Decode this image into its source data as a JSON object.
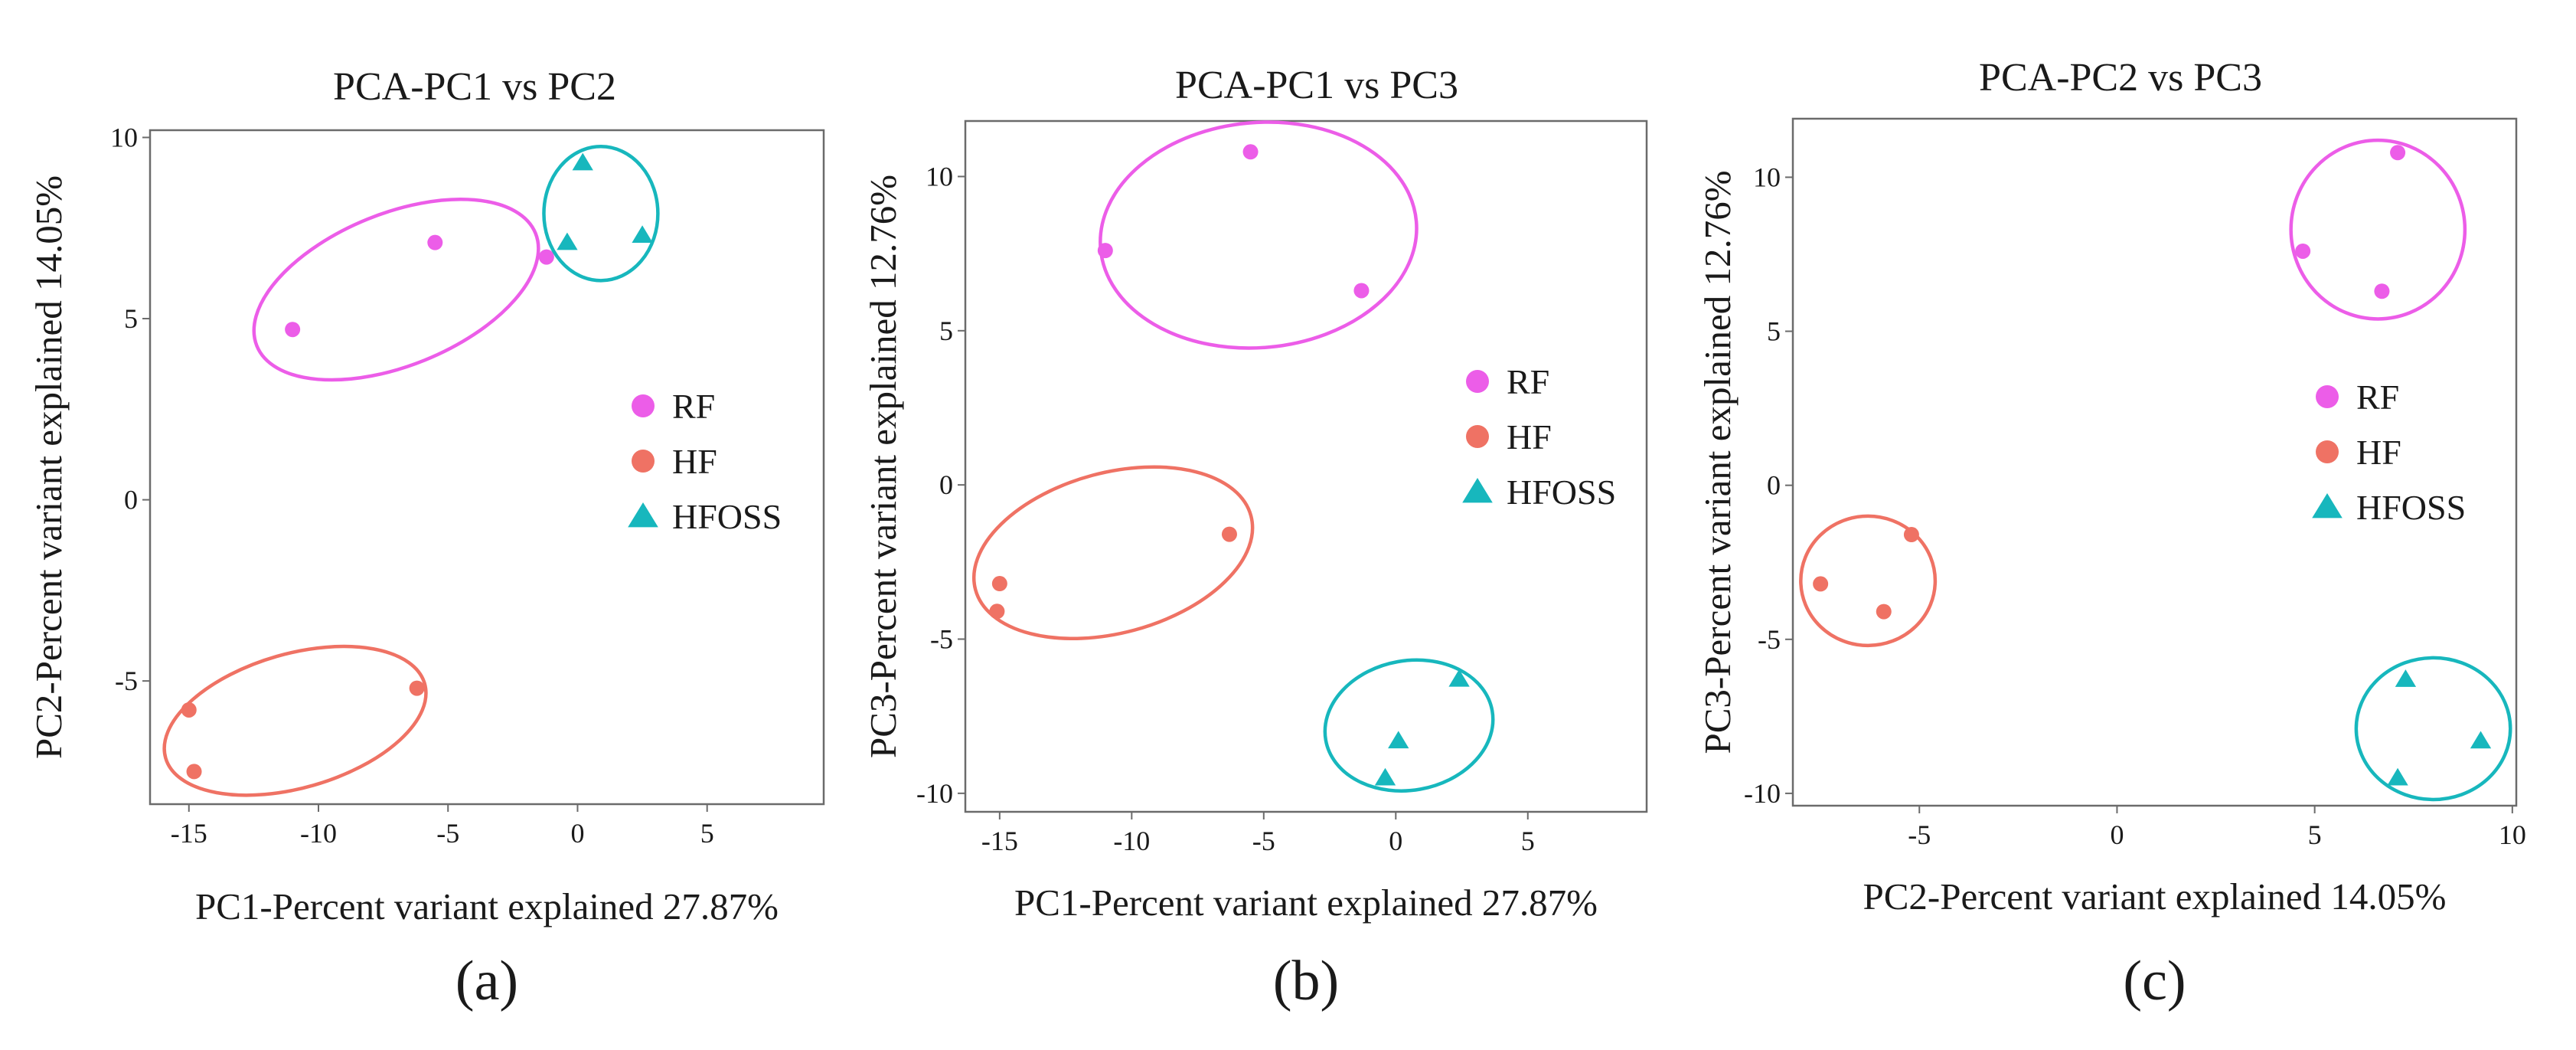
{
  "chart_data": [
    {
      "type": "scatter",
      "panel_label": "(a)",
      "title": "PCA-PC1 vs PC2",
      "xlabel": "PC1-Percent variant explained 27.87%",
      "ylabel": "PC2-Percent variant explained 14.05%",
      "xlim": [
        -16.5,
        9.5
      ],
      "ylim": [
        -8.4,
        10.2
      ],
      "xticks": [
        -15,
        -10,
        -5,
        0,
        5
      ],
      "yticks": [
        10,
        5,
        0,
        -5
      ],
      "legend_position": "right-center",
      "series": [
        {
          "name": "RF",
          "marker": "circle",
          "color": "#ec5de8",
          "points": [
            [
              -11.0,
              4.7
            ],
            [
              -5.5,
              7.1
            ],
            [
              -1.2,
              6.7
            ]
          ],
          "ellipse": {
            "center": [
              -7.0,
              5.8
            ],
            "rx": 5.8,
            "ry": 2.1,
            "angle_deg": -22
          }
        },
        {
          "name": "HF",
          "marker": "circle",
          "color": "#ef7264",
          "points": [
            [
              -15.0,
              -5.8
            ],
            [
              -14.8,
              -7.5
            ],
            [
              -6.2,
              -5.2
            ]
          ],
          "ellipse": {
            "center": [
              -10.9,
              -6.1
            ],
            "rx": 5.2,
            "ry": 1.85,
            "angle_deg": -16
          }
        },
        {
          "name": "HFOSS",
          "marker": "triangle",
          "color": "#17b7bd",
          "points": [
            [
              0.2,
              9.3
            ],
            [
              -0.4,
              7.1
            ],
            [
              2.5,
              7.3
            ]
          ],
          "ellipse": {
            "center": [
              0.9,
              7.9
            ],
            "rx": 2.2,
            "ry": 1.85,
            "angle_deg": 0
          }
        }
      ]
    },
    {
      "type": "scatter",
      "panel_label": "(b)",
      "title": "PCA-PC1 vs PC3",
      "xlabel": "PC1-Percent variant explained 27.87%",
      "ylabel": "PC3-Percent variant explained 12.76%",
      "xlim": [
        -16.3,
        9.5
      ],
      "ylim": [
        -10.6,
        11.8
      ],
      "xticks": [
        -15,
        -10,
        -5,
        0,
        5
      ],
      "yticks": [
        10,
        5,
        0,
        -5,
        -10
      ],
      "legend_position": "right-center",
      "series": [
        {
          "name": "RF",
          "marker": "circle",
          "color": "#ec5de8",
          "points": [
            [
              -11.0,
              7.6
            ],
            [
              -5.5,
              10.8
            ],
            [
              -1.3,
              6.3
            ]
          ],
          "ellipse": {
            "center": [
              -5.2,
              8.1
            ],
            "rx": 6.0,
            "ry": 3.65,
            "angle_deg": -5
          }
        },
        {
          "name": "HF",
          "marker": "circle",
          "color": "#ef7264",
          "points": [
            [
              -15.0,
              -3.2
            ],
            [
              -15.1,
              -4.1
            ],
            [
              -6.3,
              -1.6
            ]
          ],
          "ellipse": {
            "center": [
              -10.7,
              -2.2
            ],
            "rx": 5.4,
            "ry": 2.6,
            "angle_deg": -15
          }
        },
        {
          "name": "HFOSS",
          "marker": "triangle",
          "color": "#17b7bd",
          "points": [
            [
              2.4,
              -6.3
            ],
            [
              0.1,
              -8.3
            ],
            [
              -0.4,
              -9.5
            ]
          ],
          "ellipse": {
            "center": [
              0.5,
              -7.8
            ],
            "rx": 3.2,
            "ry": 2.1,
            "angle_deg": -10
          }
        }
      ]
    },
    {
      "type": "scatter",
      "panel_label": "(c)",
      "title": "PCA-PC2 vs PC3",
      "xlabel": "PC2-Percent variant explained 14.05%",
      "ylabel": "PC3-Percent variant explained 12.76%",
      "xlim": [
        -8.2,
        10.1
      ],
      "ylim": [
        -10.4,
        11.9
      ],
      "xticks": [
        -5,
        0,
        5,
        10
      ],
      "yticks": [
        10,
        5,
        0,
        -5,
        -10
      ],
      "legend_position": "right-center",
      "series": [
        {
          "name": "RF",
          "marker": "circle",
          "color": "#ec5de8",
          "points": [
            [
              4.7,
              7.6
            ],
            [
              7.1,
              10.8
            ],
            [
              6.7,
              6.3
            ]
          ],
          "ellipse": {
            "center": [
              6.6,
              8.3
            ],
            "rx": 2.2,
            "ry": 2.9,
            "angle_deg": 0
          }
        },
        {
          "name": "HF",
          "marker": "circle",
          "color": "#ef7264",
          "points": [
            [
              -7.5,
              -3.2
            ],
            [
              -5.9,
              -4.1
            ],
            [
              -5.2,
              -1.6
            ]
          ],
          "ellipse": {
            "center": [
              -6.3,
              -3.1
            ],
            "rx": 1.7,
            "ry": 2.1,
            "angle_deg": 0
          }
        },
        {
          "name": "HFOSS",
          "marker": "triangle",
          "color": "#17b7bd",
          "points": [
            [
              7.3,
              -6.3
            ],
            [
              9.2,
              -8.3
            ],
            [
              7.1,
              -9.5
            ]
          ],
          "ellipse": {
            "center": [
              8.0,
              -7.9
            ],
            "rx": 1.95,
            "ry": 2.3,
            "angle_deg": 0
          }
        }
      ]
    }
  ]
}
